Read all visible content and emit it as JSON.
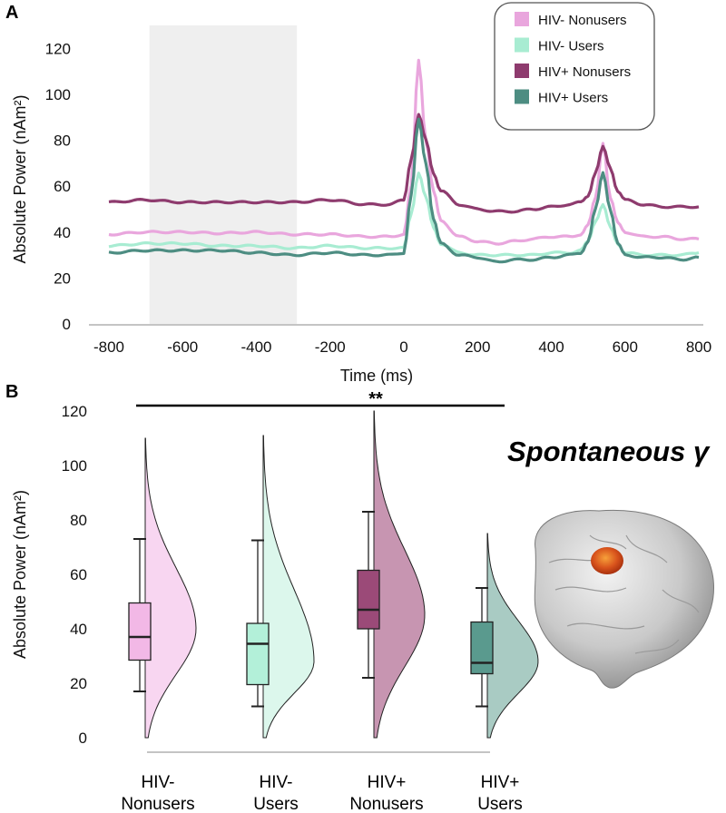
{
  "figure": {
    "panel_a_label": "A",
    "panel_b_label": "B",
    "side_title": "Spontaneous γ",
    "significance": "**"
  },
  "chart_data": [
    {
      "type": "line",
      "panel": "A",
      "title": "",
      "xlabel": "Time (ms)",
      "ylabel": "Absolute Power (nAm²)",
      "xlim": [
        -800,
        800
      ],
      "ylim": [
        0,
        130
      ],
      "xticks": [
        -800,
        -600,
        -400,
        -200,
        0,
        200,
        400,
        600,
        800
      ],
      "yticks": [
        0,
        20,
        40,
        60,
        80,
        100,
        120
      ],
      "shaded_region": [
        -690,
        -290
      ],
      "grid": false,
      "legend_position": "top-right",
      "series": [
        {
          "name": "HIV- Nonusers",
          "color": "#e9a6dd",
          "x": [
            -800,
            -700,
            -600,
            -500,
            -400,
            -300,
            -200,
            -100,
            -40,
            0,
            20,
            40,
            60,
            80,
            100,
            150,
            200,
            250,
            300,
            350,
            400,
            450,
            480,
            500,
            520,
            540,
            560,
            580,
            600,
            650,
            700,
            750,
            800
          ],
          "y": [
            39,
            40,
            40,
            39.5,
            40,
            39,
            39,
            38,
            38,
            39,
            60,
            115,
            80,
            58,
            45,
            38,
            36,
            35,
            36,
            37,
            38,
            38,
            39,
            43,
            55,
            79,
            55,
            44,
            40,
            38,
            38,
            37,
            37
          ]
        },
        {
          "name": "HIV- Users",
          "color": "#a8ecd2",
          "x": [
            -800,
            -700,
            -600,
            -500,
            -400,
            -300,
            -200,
            -100,
            -40,
            0,
            20,
            40,
            60,
            80,
            100,
            150,
            200,
            250,
            300,
            350,
            400,
            450,
            480,
            500,
            520,
            540,
            560,
            580,
            600,
            650,
            700,
            750,
            800
          ],
          "y": [
            34,
            35,
            35,
            34,
            34,
            33,
            34,
            33,
            33,
            33,
            48,
            66,
            55,
            42,
            35,
            31,
            30,
            30,
            30,
            30,
            31,
            31,
            32,
            36,
            45,
            52,
            42,
            35,
            31,
            30,
            30,
            30,
            31
          ]
        },
        {
          "name": "HIV+ Nonusers",
          "color": "#8e3b6e",
          "x": [
            -800,
            -700,
            -600,
            -500,
            -400,
            -300,
            -200,
            -100,
            -40,
            0,
            20,
            40,
            60,
            80,
            100,
            150,
            200,
            250,
            300,
            350,
            400,
            450,
            480,
            500,
            520,
            540,
            560,
            580,
            600,
            650,
            700,
            750,
            800
          ],
          "y": [
            53,
            54,
            53,
            53,
            53,
            53,
            54,
            52,
            52,
            54,
            72,
            91,
            80,
            66,
            58,
            52,
            50,
            49,
            49,
            50,
            51,
            52,
            53,
            56,
            66,
            77,
            68,
            58,
            54,
            52,
            51,
            51,
            51
          ]
        },
        {
          "name": "HIV+ Users",
          "color": "#4d8d82",
          "x": [
            -800,
            -700,
            -600,
            -500,
            -400,
            -300,
            -200,
            -100,
            -40,
            0,
            20,
            40,
            60,
            80,
            100,
            150,
            200,
            250,
            300,
            350,
            400,
            450,
            480,
            500,
            520,
            540,
            560,
            580,
            600,
            650,
            700,
            750,
            800
          ],
          "y": [
            31,
            32,
            32,
            32,
            31,
            30,
            31,
            30,
            30,
            31,
            56,
            89,
            70,
            46,
            35,
            30,
            29,
            27,
            28,
            28,
            29,
            30,
            31,
            36,
            50,
            66,
            50,
            35,
            30,
            29,
            29,
            28,
            29
          ]
        }
      ]
    },
    {
      "type": "raincloud",
      "panel": "B",
      "title": "",
      "ylabel": "Absolute Power (nAm²)",
      "ylim": [
        0,
        120
      ],
      "yticks": [
        0,
        20,
        40,
        60,
        80,
        100,
        120
      ],
      "categories": [
        "HIV-\nNonusers",
        "HIV-\nUsers",
        "HIV+\nNonusers",
        "HIV+\nUsers"
      ],
      "groups": [
        {
          "name": "HIV- Nonusers",
          "box_color": "#f2b8e6",
          "violin_color": "#f8d6f1",
          "whisker_low": 17,
          "q1": 28.5,
          "median": 37,
          "q3": 49.5,
          "whisker_high": 73,
          "violin_min": 0,
          "violin_max": 110,
          "violin_mode": 40
        },
        {
          "name": "HIV- Users",
          "box_color": "#b3f0d9",
          "violin_color": "#dcf7ec",
          "whisker_low": 11.5,
          "q1": 19.5,
          "median": 34.5,
          "q3": 42,
          "whisker_high": 72.5,
          "violin_min": 0,
          "violin_max": 111,
          "violin_mode": 28
        },
        {
          "name": "HIV+ Nonusers",
          "box_color": "#9b4a78",
          "violin_color": "#c795b1",
          "whisker_low": 22,
          "q1": 40,
          "median": 47,
          "q3": 61.5,
          "whisker_high": 83,
          "violin_min": 0,
          "violin_max": 120,
          "violin_mode": 45
        },
        {
          "name": "HIV+ Users",
          "box_color": "#5a9a8e",
          "violin_color": "#a9cbc3",
          "whisker_low": 11.5,
          "q1": 23.5,
          "median": 27.5,
          "q3": 42.5,
          "whisker_high": 55,
          "violin_min": 0,
          "violin_max": 75,
          "violin_mode": 28
        }
      ],
      "significance": {
        "from": 0,
        "to": 3,
        "label": "**"
      }
    }
  ]
}
